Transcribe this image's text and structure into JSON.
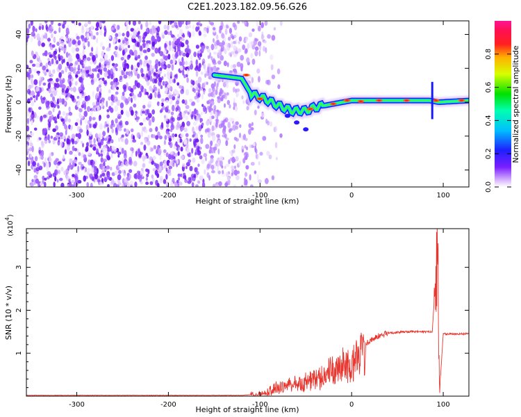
{
  "figure": {
    "title": "C2E1.2023.182.09.56.G26"
  },
  "chart_data": [
    {
      "type": "heatmap",
      "xlabel": "Height of straight line (km)",
      "ylabel": "Frequency (Hz)",
      "xlim": [
        -355,
        128
      ],
      "ylim": [
        -50,
        48
      ],
      "xticks": [
        -300,
        -200,
        -100,
        0,
        100
      ],
      "yticks": [
        -40,
        -20,
        0,
        20,
        40
      ],
      "colorbar": {
        "label": "Normalized spectral amplitude",
        "range": [
          0,
          1
        ],
        "ticks": [
          0.0,
          0.2,
          0.4,
          0.6,
          0.8
        ],
        "colormap": "rainbow (purple-blue-cyan-green-yellow-red-magenta)"
      },
      "features": {
        "noise_region_x": [
          -355,
          -100
        ],
        "signal_track": {
          "x": [
            -150,
            -120,
            -110,
            -95,
            -80,
            -65,
            -50,
            -40,
            -20,
            0,
            30,
            60,
            85,
            95,
            128
          ],
          "freq": [
            16,
            14,
            5,
            2,
            -2,
            -5,
            -5,
            -3,
            -1,
            1,
            1,
            1,
            1,
            0,
            1
          ]
        }
      }
    },
    {
      "type": "line",
      "xlabel": "Height of straight line (km)",
      "ylabel": "SNR (10 * v/v)",
      "y_multiplier": "(x10^4)",
      "xlim": [
        -355,
        128
      ],
      "ylim": [
        0,
        3.9
      ],
      "xticks": [
        -300,
        -200,
        -100,
        0,
        100
      ],
      "yticks": [
        1,
        2,
        3
      ],
      "series": [
        {
          "color": "#e8362f",
          "envelope": {
            "x": [
              -355,
              -120,
              -100,
              -80,
              -60,
              -40,
              -20,
              0,
              10,
              20,
              30,
              40,
              60,
              80,
              88,
              92,
              94,
              96,
              100,
              128
            ],
            "y": [
              0.02,
              0.02,
              0.05,
              0.25,
              0.35,
              0.45,
              0.7,
              0.9,
              1.1,
              1.3,
              1.4,
              1.47,
              1.5,
              1.5,
              1.5,
              2.9,
              3.9,
              0.1,
              1.45,
              1.45
            ]
          }
        }
      ]
    }
  ]
}
